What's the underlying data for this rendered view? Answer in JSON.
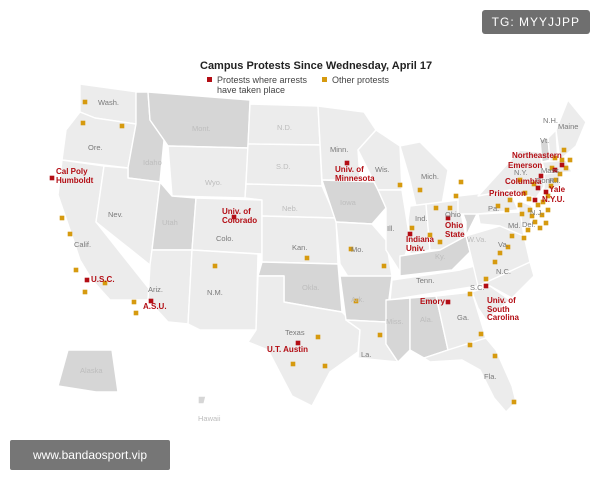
{
  "title": "Campus Protests Since Wednesday, April 17",
  "legend": [
    {
      "label_line1": "Protests where arrests",
      "label_line2": "have taken place",
      "color": "#b30d14"
    },
    {
      "label_line1": "Other protests",
      "label_line2": "",
      "color": "#d69a0f"
    }
  ],
  "colors": {
    "land_light": "#ececec",
    "land_dark": "#d6d6d6",
    "border": "#ffffff",
    "arrest": "#b30d14",
    "other": "#d69a0f"
  },
  "badge": "TG: MYYJJPP",
  "footer": "www.bandaosport.vip",
  "state_labels": [
    "Wash.",
    "Ore.",
    "Mont.",
    "Idaho",
    "Wyo.",
    "Nev.",
    "Utah",
    "Calif.",
    "Ariz.",
    "Colo.",
    "N.M.",
    "N.D.",
    "S.D.",
    "Neb.",
    "Kan.",
    "Okla.",
    "Texas",
    "Minn.",
    "Iowa",
    "Mo.",
    "Ark.",
    "La.",
    "Wis.",
    "Ill.",
    "Mich.",
    "Ind.",
    "Ohio",
    "Ky.",
    "Tenn.",
    "Miss.",
    "Ala.",
    "Ga.",
    "Fla.",
    "S.C.",
    "N.C.",
    "Va.",
    "W.Va.",
    "Pa.",
    "N.Y.",
    "Vt.",
    "N.H.",
    "Maine",
    "Mass.",
    "Conn.",
    "R.I.",
    "N.J.",
    "Del.",
    "Md.",
    "Alaska",
    "Hawaii"
  ],
  "campus_labels": [
    "Cal Poly\nHumboldt",
    "U.S.C.",
    "A.S.U.",
    "Univ. of\nColorado",
    "U.T. Austin",
    "Univ. of\nMinnesota",
    "Indiana\nUniv.",
    "Ohio\nState",
    "Emory",
    "Univ. of\nSouth\nCarolina",
    "Northeastern",
    "Emerson",
    "Columbia",
    "Yale",
    "N.Y.U.",
    "Princeton"
  ],
  "chart_data": {
    "type": "map",
    "title": "Campus Protests Since Wednesday, April 17",
    "arrest_campuses": [
      "Cal Poly Humboldt",
      "U.S.C.",
      "A.S.U.",
      "Univ. of Colorado",
      "U.T. Austin",
      "Univ. of Minnesota",
      "Indiana Univ.",
      "Ohio State",
      "Emory",
      "Univ. of South Carolina",
      "Northeastern",
      "Emerson",
      "Columbia",
      "Yale",
      "N.Y.U.",
      "Princeton"
    ],
    "legend": [
      "Protests where arrests have taken place",
      "Other protests"
    ]
  }
}
